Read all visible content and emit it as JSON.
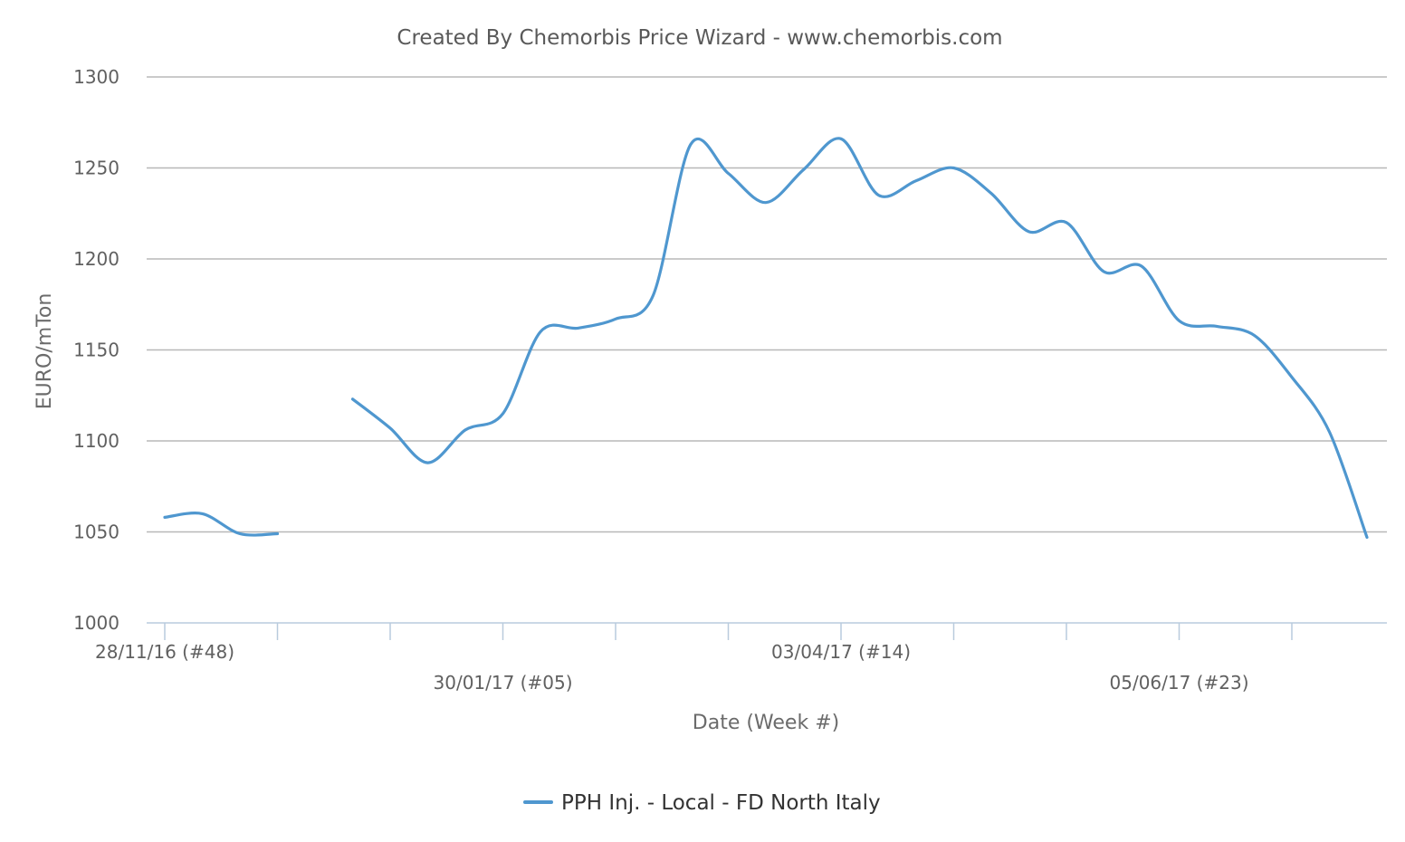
{
  "chart_data": {
    "type": "line",
    "title": "Created By Chemorbis Price Wizard - www.chemorbis.com",
    "xlabel": "Date (Week #)",
    "ylabel": "EURO/mTon",
    "ylim": [
      1000,
      1300
    ],
    "y_ticks": [
      1000,
      1050,
      1100,
      1150,
      1200,
      1250,
      1300
    ],
    "x_tick_labels": [
      {
        "week": 0,
        "label": "28/11/16 (#48)",
        "row": 1
      },
      {
        "week": 9,
        "label": "30/01/17 (#05)",
        "row": 2
      },
      {
        "week": 18,
        "label": "03/04/17 (#14)",
        "row": 1
      },
      {
        "week": 27,
        "label": "05/06/17 (#23)",
        "row": 2
      }
    ],
    "grid": true,
    "legend_position": "bottom-center",
    "color": "#4f97cf",
    "series": [
      {
        "name": "PPH Inj. - Local - FD North Italy",
        "values": [
          [
            0,
            1058
          ],
          [
            1,
            1060
          ],
          [
            2,
            1049
          ],
          [
            3,
            1049
          ],
          [
            5,
            1123
          ],
          [
            6,
            1107
          ],
          [
            7,
            1088
          ],
          [
            8,
            1106
          ],
          [
            9,
            1115
          ],
          [
            10,
            1160
          ],
          [
            11,
            1162
          ],
          [
            12,
            1167
          ],
          [
            13,
            1180
          ],
          [
            14,
            1263
          ],
          [
            15,
            1247
          ],
          [
            16,
            1231
          ],
          [
            17,
            1249
          ],
          [
            18,
            1266
          ],
          [
            19,
            1235
          ],
          [
            20,
            1243
          ],
          [
            21,
            1250
          ],
          [
            22,
            1236
          ],
          [
            23,
            1215
          ],
          [
            24,
            1220
          ],
          [
            25,
            1193
          ],
          [
            26,
            1196
          ],
          [
            27,
            1166
          ],
          [
            28,
            1163
          ],
          [
            29,
            1158
          ],
          [
            30,
            1135
          ],
          [
            31,
            1105
          ],
          [
            32,
            1047
          ]
        ]
      }
    ]
  }
}
